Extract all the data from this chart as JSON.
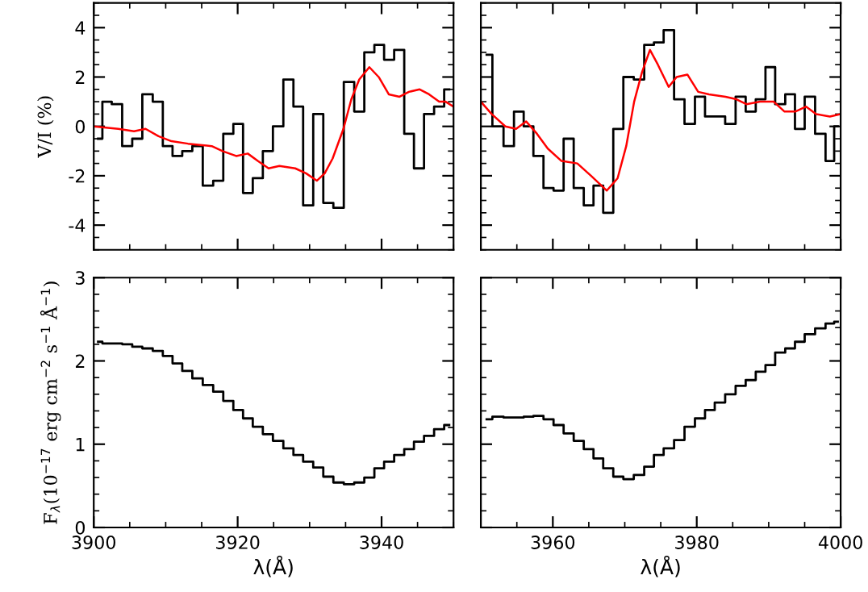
{
  "chart_data": [
    {
      "type": "step",
      "ylabel": "V/I (%)",
      "xlim": [
        3900,
        3950
      ],
      "ylim": [
        -5,
        5
      ],
      "yticks": [
        -4,
        -2,
        0,
        2,
        4
      ],
      "xticks": [
        {
          "value": 3900,
          "label": null
        },
        {
          "value": 3920,
          "label": null
        },
        {
          "value": 3940,
          "label": null
        }
      ],
      "tick_labels": "y",
      "series": [
        {
          "color": "#000000",
          "x": [
            3900.6,
            3901.8,
            3903.2,
            3904.7,
            3906.0,
            3907.5,
            3908.9,
            3910.3,
            3911.6,
            3913.0,
            3914.4,
            3915.9,
            3917.3,
            3918.7,
            3920.1,
            3921.4,
            3922.8,
            3924.2,
            3925.6,
            3927.1,
            3928.4,
            3929.8,
            3931.2,
            3932.6,
            3934.0,
            3935.5,
            3936.9,
            3938.3,
            3939.7,
            3941.0,
            3942.5,
            3943.8,
            3945.2,
            3946.6,
            3948.0,
            3949.4
          ],
          "values": [
            -0.5,
            1.0,
            0.9,
            -0.8,
            -0.5,
            1.3,
            1.0,
            -0.8,
            -1.2,
            -1.0,
            -0.8,
            -2.4,
            -2.2,
            -0.3,
            0.1,
            -2.7,
            -2.1,
            -1.0,
            0.0,
            1.9,
            0.8,
            -3.2,
            0.5,
            -3.1,
            -3.3,
            1.8,
            0.6,
            3.0,
            3.3,
            2.7,
            3.1,
            -0.3,
            -1.7,
            0.5,
            0.8,
            1.5
          ]
        },
        {
          "type": "line",
          "color": "#ff0000",
          "x": [
            3900,
            3903.4,
            3905.6,
            3907.2,
            3909.0,
            3910.8,
            3913.1,
            3916.4,
            3917.9,
            3919.8,
            3921.4,
            3922.8,
            3924.3,
            3925.8,
            3928.0,
            3929.5,
            3931.0,
            3932.1,
            3933.2,
            3934.7,
            3935.8,
            3936.9,
            3938.3,
            3939.6,
            3941.0,
            3942.5,
            3943.8,
            3945.3,
            3946.6,
            3948.0,
            3948.9,
            3950
          ],
          "values": [
            0.0,
            -0.1,
            -0.2,
            -0.1,
            -0.4,
            -0.6,
            -0.7,
            -0.8,
            -1.0,
            -1.2,
            -1.1,
            -1.4,
            -1.7,
            -1.6,
            -1.7,
            -1.9,
            -2.2,
            -1.9,
            -1.3,
            -0.1,
            1.1,
            1.9,
            2.4,
            2.0,
            1.3,
            1.2,
            1.4,
            1.5,
            1.3,
            1.0,
            1.0,
            0.8
          ]
        }
      ]
    },
    {
      "type": "step",
      "xlim": [
        3950,
        4000
      ],
      "ylim": [
        -5,
        5
      ],
      "yticks": [
        {
          "value": -4,
          "label": null
        },
        {
          "value": -2,
          "label": null
        },
        {
          "value": 0,
          "label": null
        },
        {
          "value": 2,
          "label": null
        },
        {
          "value": 4,
          "label": null
        }
      ],
      "xticks": [
        {
          "value": 3960,
          "label": null
        },
        {
          "value": 3980,
          "label": null
        },
        {
          "value": 4000,
          "label": null
        }
      ],
      "tick_labels": false,
      "series": [
        {
          "color": "#000000",
          "x": [
            3950.8,
            3952.4,
            3953.9,
            3955.3,
            3956.6,
            3958.0,
            3959.4,
            3960.8,
            3962.2,
            3963.6,
            3965.0,
            3966.3,
            3967.7,
            3969.1,
            3970.5,
            3972.0,
            3973.4,
            3974.7,
            3976.1,
            3977.6,
            3979.0,
            3980.5,
            3981.8,
            3983.2,
            3984.7,
            3986.1,
            3987.5,
            3988.9,
            3990.2,
            3991.6,
            3993.0,
            3994.3,
            3995.7,
            3997.2,
            3998.6,
            3999.6
          ],
          "values": [
            2.9,
            0.0,
            -0.8,
            0.6,
            0.0,
            -1.2,
            -2.5,
            -2.6,
            -0.5,
            -2.5,
            -3.2,
            -2.4,
            -3.5,
            -0.1,
            2.0,
            1.9,
            3.3,
            3.4,
            3.9,
            1.1,
            0.1,
            1.2,
            0.4,
            0.4,
            0.1,
            1.2,
            0.6,
            1.1,
            2.4,
            0.9,
            1.3,
            -0.1,
            1.2,
            -0.3,
            -1.4,
            0.0
          ]
        },
        {
          "type": "line",
          "color": "#ff0000",
          "x": [
            3950,
            3951.5,
            3953.4,
            3954.9,
            3956.3,
            3957.8,
            3959.3,
            3961.2,
            3963.4,
            3965.3,
            3967.5,
            3969.0,
            3970.2,
            3971.3,
            3972.4,
            3973.5,
            3974.6,
            3976.1,
            3977.2,
            3978.7,
            3980.2,
            3981.7,
            3984.0,
            3985.5,
            3986.9,
            3988.8,
            3990.7,
            3992.2,
            3993.7,
            3995.2,
            3996.6,
            3998.5,
            4000
          ],
          "values": [
            1.0,
            0.5,
            0.0,
            -0.1,
            0.2,
            -0.3,
            -0.9,
            -1.4,
            -1.5,
            -2.0,
            -2.6,
            -2.1,
            -0.8,
            1.0,
            2.2,
            3.1,
            2.5,
            1.6,
            2.0,
            2.1,
            1.4,
            1.3,
            1.2,
            1.1,
            0.9,
            1.0,
            1.0,
            0.6,
            0.6,
            0.8,
            0.5,
            0.4,
            0.5
          ]
        }
      ]
    },
    {
      "type": "step",
      "ylabel": "F$_{λ}$(10$^{−17}$ erg cm$^{−2}$ s$^{−1}$ Å$^{−1}$)",
      "xlabel": "λ(Å)",
      "xlim": [
        3900,
        3950
      ],
      "ylim": [
        0,
        3
      ],
      "xticks": [
        3900,
        3920,
        3940
      ],
      "yticks": [
        0,
        1,
        2,
        3
      ],
      "series": [
        {
          "color": "#000000",
          "x": [
            3900.6,
            3901.8,
            3903.2,
            3904.7,
            3906.0,
            3907.5,
            3908.9,
            3910.3,
            3911.6,
            3913.0,
            3914.4,
            3915.9,
            3917.3,
            3918.7,
            3920.1,
            3921.4,
            3922.8,
            3924.2,
            3925.6,
            3927.1,
            3928.4,
            3929.8,
            3931.2,
            3932.6,
            3934.0,
            3935.5,
            3936.9,
            3938.3,
            3939.7,
            3941.0,
            3942.5,
            3943.8,
            3945.2,
            3946.6,
            3948.0,
            3949.4
          ],
          "values": [
            2.23,
            2.21,
            2.21,
            2.2,
            2.17,
            2.15,
            2.12,
            2.06,
            1.97,
            1.88,
            1.79,
            1.71,
            1.63,
            1.52,
            1.41,
            1.31,
            1.21,
            1.12,
            1.04,
            0.95,
            0.87,
            0.79,
            0.72,
            0.61,
            0.54,
            0.52,
            0.54,
            0.6,
            0.71,
            0.79,
            0.87,
            0.94,
            1.03,
            1.1,
            1.18,
            1.23
          ]
        }
      ]
    },
    {
      "type": "step",
      "xlabel": "λ(Å)",
      "xlim": [
        3950,
        4000
      ],
      "ylim": [
        0,
        3
      ],
      "xticks": [
        3960,
        3980,
        4000
      ],
      "yticks": [
        {
          "value": 0,
          "label": null
        },
        {
          "value": 1,
          "label": null
        },
        {
          "value": 2,
          "label": null
        },
        {
          "value": 3,
          "label": null
        }
      ],
      "tick_labels": "x",
      "series": [
        {
          "color": "#000000",
          "x": [
            3950.8,
            3952.4,
            3953.9,
            3955.3,
            3956.6,
            3958.0,
            3959.4,
            3960.8,
            3962.2,
            3963.6,
            3965.0,
            3966.3,
            3967.7,
            3969.1,
            3970.5,
            3972.0,
            3973.4,
            3974.7,
            3976.1,
            3977.6,
            3979.0,
            3980.5,
            3981.8,
            3983.2,
            3984.7,
            3986.1,
            3987.5,
            3988.9,
            3990.2,
            3991.6,
            3993.0,
            3994.3,
            3995.7,
            3997.2,
            3998.6,
            3999.6
          ],
          "values": [
            1.3,
            1.33,
            1.32,
            1.32,
            1.33,
            1.34,
            1.3,
            1.23,
            1.13,
            1.04,
            0.94,
            0.83,
            0.71,
            0.61,
            0.58,
            0.63,
            0.73,
            0.87,
            0.95,
            1.05,
            1.21,
            1.31,
            1.41,
            1.5,
            1.6,
            1.7,
            1.77,
            1.87,
            1.95,
            2.1,
            2.15,
            2.23,
            2.32,
            2.39,
            2.45,
            2.47
          ]
        }
      ]
    }
  ]
}
